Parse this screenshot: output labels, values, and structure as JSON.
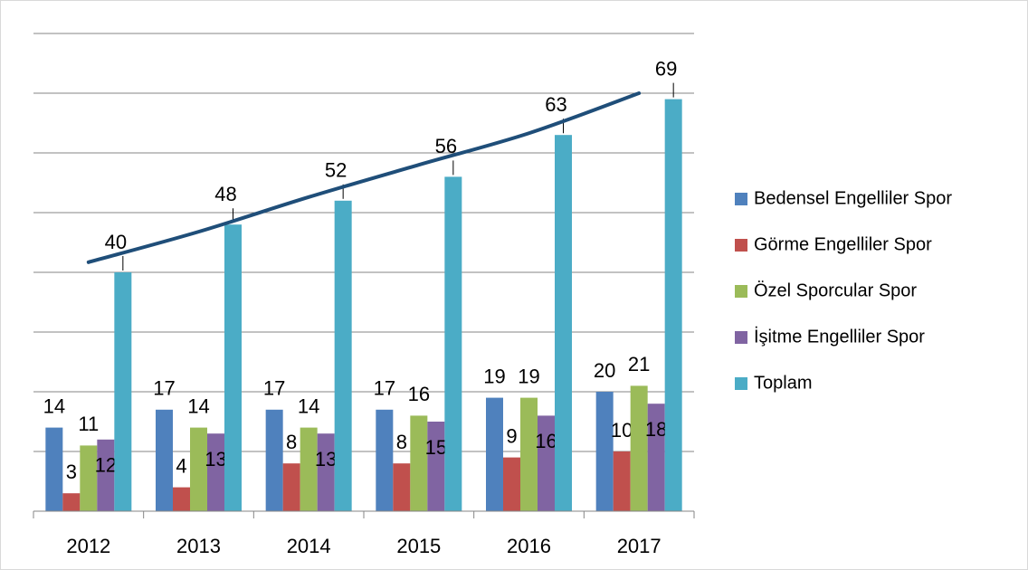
{
  "chart_data": {
    "type": "bar",
    "categories": [
      "2012",
      "2013",
      "2014",
      "2015",
      "2016",
      "2017"
    ],
    "series": [
      {
        "name": "Bedensel Engelliler Spor",
        "color": "#4f81bd",
        "values": [
          14,
          17,
          17,
          17,
          19,
          20
        ]
      },
      {
        "name": "Görme Engelliler Spor",
        "color": "#c0504d",
        "values": [
          3,
          4,
          8,
          8,
          9,
          10
        ]
      },
      {
        "name": "Özel Sporcular Spor",
        "color": "#9bbb59",
        "values": [
          11,
          14,
          14,
          16,
          19,
          21
        ]
      },
      {
        "name": "İşitme Engelliler Spor",
        "color": "#8064a2",
        "values": [
          12,
          13,
          13,
          15,
          16,
          18
        ]
      },
      {
        "name": "Toplam",
        "color": "#4bacc6",
        "values": [
          40,
          48,
          52,
          56,
          63,
          69
        ]
      }
    ],
    "trendline": {
      "color": "#1f4e79",
      "values": [
        41.7,
        46.8,
        52.6,
        58,
        63.3,
        70
      ]
    },
    "ylim": [
      0,
      80
    ],
    "yticks": [
      0,
      10,
      20,
      30,
      40,
      50,
      60,
      70,
      80
    ],
    "grid": true,
    "legend": "right"
  }
}
